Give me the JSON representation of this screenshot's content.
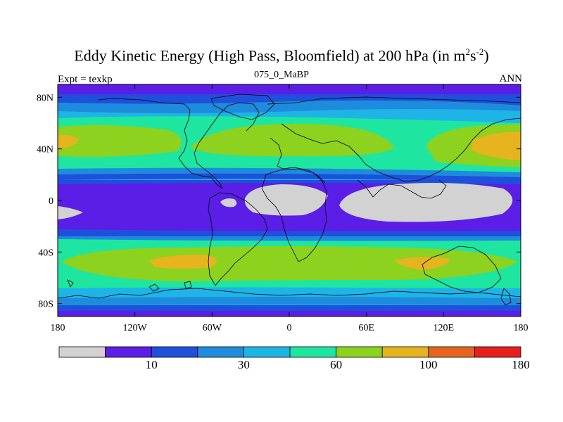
{
  "title": {
    "main": "Eddy Kinetic Energy (High Pass, Bloomfield) at 200 hPa (in m",
    "sup1": "2",
    "mid": "s",
    "sup2": "-2",
    "close": ")"
  },
  "subtitle": "075_0_MaBP",
  "left_label": "Expt = texkp",
  "right_label": "ANN",
  "map": {
    "lon_range": [
      -180,
      180
    ],
    "lat_range": [
      -90,
      90
    ],
    "x_ticks": [
      {
        "value": -180,
        "label": "180"
      },
      {
        "value": -120,
        "label": "120W"
      },
      {
        "value": -60,
        "label": "60W"
      },
      {
        "value": 0,
        "label": "0"
      },
      {
        "value": 60,
        "label": "60E"
      },
      {
        "value": 120,
        "label": "120E"
      },
      {
        "value": 180,
        "label": "180"
      }
    ],
    "y_ticks": [
      {
        "value": 80,
        "label": "80N"
      },
      {
        "value": 40,
        "label": "40N"
      },
      {
        "value": 0,
        "label": "0"
      },
      {
        "value": -40,
        "label": "40S"
      },
      {
        "value": -80,
        "label": "80S"
      }
    ]
  },
  "colorbar": {
    "colors": [
      "#d2d2d2",
      "#5a1ee6",
      "#1e50dc",
      "#1e8cdc",
      "#1eb4e6",
      "#1ee6a0",
      "#8cd21e",
      "#e6b41e",
      "#e6641e",
      "#e61e1e"
    ],
    "labels": [
      "10",
      "30",
      "60",
      "100",
      "180"
    ]
  }
}
